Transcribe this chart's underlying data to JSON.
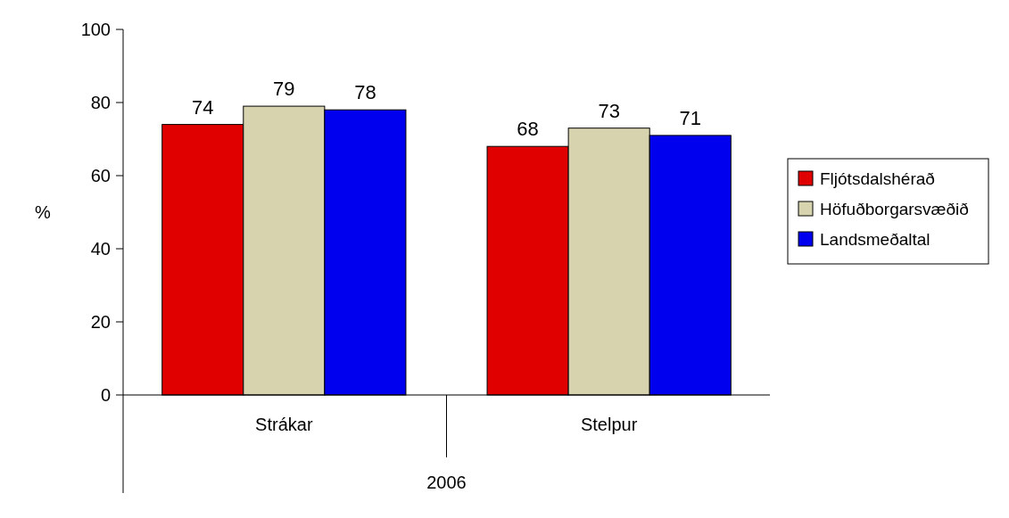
{
  "chart_data": {
    "type": "bar",
    "categories": [
      "Strákar",
      "Stelpur"
    ],
    "xlabel": "2006",
    "ylabel": "%",
    "ylim": [
      0,
      100
    ],
    "yticks": [
      0,
      20,
      40,
      60,
      80,
      100
    ],
    "grid": false,
    "legend": "right",
    "data_labels": true,
    "series": [
      {
        "name": "Fljótsdalshérað",
        "color": "#e00000",
        "values": [
          74,
          68
        ]
      },
      {
        "name": "Höfuðborgarsvæðið",
        "color": "#d6d3ae",
        "values": [
          79,
          73
        ]
      },
      {
        "name": "Landsmeðaltal",
        "color": "#0000ee",
        "values": [
          78,
          71
        ]
      }
    ]
  }
}
